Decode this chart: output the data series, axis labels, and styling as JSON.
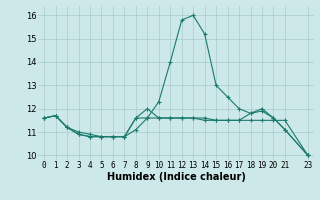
{
  "xlabel": "Humidex (Indice chaleur)",
  "background_color": "#cce8e8",
  "grid_color": "#aacccc",
  "line_color": "#1a7a6e",
  "xlim": [
    -0.5,
    23.5
  ],
  "ylim": [
    9.8,
    16.4
  ],
  "xticks": [
    0,
    1,
    2,
    3,
    4,
    5,
    6,
    7,
    8,
    9,
    10,
    11,
    12,
    13,
    14,
    15,
    16,
    17,
    18,
    19,
    20,
    21,
    23
  ],
  "yticks": [
    10,
    11,
    12,
    13,
    14,
    15,
    16
  ],
  "series": [
    {
      "x": [
        0,
        1,
        2,
        3,
        4,
        5,
        6,
        7,
        8,
        9,
        10,
        11,
        12,
        13,
        14,
        15,
        16,
        17,
        18,
        19,
        20,
        21,
        23
      ],
      "y": [
        11.6,
        11.7,
        11.2,
        11.0,
        10.9,
        10.8,
        10.8,
        10.8,
        11.1,
        11.6,
        12.3,
        14.0,
        15.8,
        16.0,
        15.2,
        13.0,
        12.5,
        12.0,
        11.8,
        11.9,
        11.6,
        11.1,
        10.0
      ]
    },
    {
      "x": [
        0,
        1,
        2,
        3,
        4,
        5,
        6,
        7,
        8,
        9,
        10,
        11,
        12,
        13,
        14,
        15,
        16,
        17,
        18,
        19,
        20,
        21,
        23
      ],
      "y": [
        11.6,
        11.7,
        11.2,
        10.9,
        10.8,
        10.8,
        10.8,
        10.8,
        11.6,
        11.6,
        11.6,
        11.6,
        11.6,
        11.6,
        11.6,
        11.5,
        11.5,
        11.5,
        11.8,
        12.0,
        11.6,
        11.1,
        10.0
      ]
    },
    {
      "x": [
        0,
        1,
        2,
        3,
        4,
        5,
        6,
        7,
        8,
        9,
        10,
        11,
        12,
        13,
        14,
        15,
        16,
        17,
        18,
        19,
        20,
        21,
        23
      ],
      "y": [
        11.6,
        11.7,
        11.2,
        10.9,
        10.8,
        10.8,
        10.8,
        10.8,
        11.6,
        12.0,
        11.6,
        11.6,
        11.6,
        11.6,
        11.5,
        11.5,
        11.5,
        11.5,
        11.5,
        11.5,
        11.5,
        11.5,
        10.0
      ]
    }
  ],
  "xlabel_fontsize": 7,
  "tick_fontsize": 6
}
